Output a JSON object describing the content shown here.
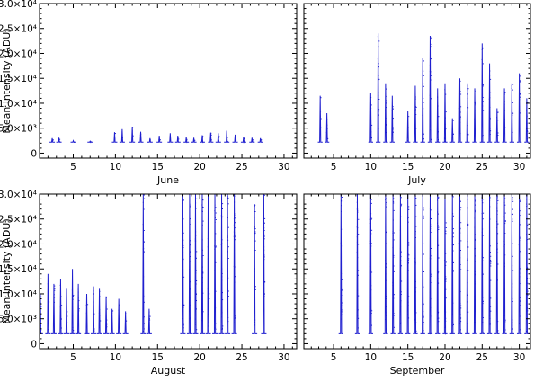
{
  "colors": {
    "series": "#1f1fcf",
    "axis": "#000000"
  },
  "chart_data": [
    {
      "type": "line",
      "xlabel": "June",
      "ylabel": "Mean intensity (ADU)",
      "xlim": [
        1,
        31.5
      ],
      "ylim": [
        -1000,
        30000
      ],
      "xticks": [
        "5",
        "10",
        "15",
        "20",
        "25",
        "30"
      ],
      "yticks": [
        "0",
        "5.0×10³",
        "1.0×10⁴",
        "1.5×10⁴",
        "2.0×10⁴",
        "2.5×10⁴",
        "3.0×10⁴"
      ],
      "baseline": 2200,
      "events": [
        {
          "d": 2.5,
          "peak": 3000
        },
        {
          "d": 3.3,
          "peak": 3100
        },
        {
          "d": 5.0,
          "peak": 2500
        },
        {
          "d": 7.0,
          "peak": 2400
        },
        {
          "d": 9.9,
          "peak": 4200
        },
        {
          "d": 10.8,
          "peak": 4800
        },
        {
          "d": 12.0,
          "peak": 5300
        },
        {
          "d": 13.0,
          "peak": 4300
        },
        {
          "d": 14.1,
          "peak": 3000
        },
        {
          "d": 15.2,
          "peak": 3500
        },
        {
          "d": 16.5,
          "peak": 4000
        },
        {
          "d": 17.4,
          "peak": 3500
        },
        {
          "d": 18.4,
          "peak": 3200
        },
        {
          "d": 19.3,
          "peak": 3100
        },
        {
          "d": 20.3,
          "peak": 3600
        },
        {
          "d": 21.3,
          "peak": 4100
        },
        {
          "d": 22.2,
          "peak": 4000
        },
        {
          "d": 23.2,
          "peak": 4500
        },
        {
          "d": 24.2,
          "peak": 3700
        },
        {
          "d": 25.2,
          "peak": 3300
        },
        {
          "d": 26.2,
          "peak": 3100
        },
        {
          "d": 27.2,
          "peak": 3000
        }
      ]
    },
    {
      "type": "line",
      "xlabel": "July",
      "ylabel": "",
      "xlim": [
        1,
        31.5
      ],
      "ylim": [
        -1000,
        30000
      ],
      "xticks": [
        "5",
        "10",
        "15",
        "20",
        "25",
        "30"
      ],
      "yticks": [],
      "baseline": 2200,
      "events": [
        {
          "d": 3.2,
          "peak": 11500
        },
        {
          "d": 4.1,
          "peak": 8000
        },
        {
          "d": 10.0,
          "peak": 12000
        },
        {
          "d": 11.0,
          "peak": 24000
        },
        {
          "d": 12.0,
          "peak": 14000
        },
        {
          "d": 12.9,
          "peak": 11500
        },
        {
          "d": 15.0,
          "peak": 8500
        },
        {
          "d": 16.0,
          "peak": 13500
        },
        {
          "d": 17.0,
          "peak": 19000
        },
        {
          "d": 18.0,
          "peak": 23500
        },
        {
          "d": 19.0,
          "peak": 13000
        },
        {
          "d": 20.0,
          "peak": 14000
        },
        {
          "d": 21.0,
          "peak": 7000
        },
        {
          "d": 22.0,
          "peak": 15000
        },
        {
          "d": 23.0,
          "peak": 14000
        },
        {
          "d": 24.0,
          "peak": 13000
        },
        {
          "d": 25.0,
          "peak": 22000
        },
        {
          "d": 26.0,
          "peak": 18000
        },
        {
          "d": 27.0,
          "peak": 9000
        },
        {
          "d": 28.0,
          "peak": 13000
        },
        {
          "d": 29.0,
          "peak": 14000
        },
        {
          "d": 30.0,
          "peak": 16000
        },
        {
          "d": 31.0,
          "peak": 11000
        }
      ]
    },
    {
      "type": "line",
      "xlabel": "August",
      "ylabel": "Mean intensity (ADU)",
      "xlim": [
        1,
        31.5
      ],
      "ylim": [
        -1000,
        30000
      ],
      "xticks": [
        "5",
        "10",
        "15",
        "20",
        "25",
        "30"
      ],
      "yticks": [
        "0",
        "5.0×10³",
        "1.0×10⁴",
        "1.5×10⁴",
        "2.0×10⁴",
        "2.5×10⁴",
        "3.0×10⁴"
      ],
      "baseline": 2000,
      "events": [
        {
          "d": 1.1,
          "peak": 10000
        },
        {
          "d": 2.0,
          "peak": 14000
        },
        {
          "d": 2.7,
          "peak": 12000
        },
        {
          "d": 3.5,
          "peak": 13000
        },
        {
          "d": 4.2,
          "peak": 11000
        },
        {
          "d": 4.9,
          "peak": 15000
        },
        {
          "d": 5.6,
          "peak": 12000
        },
        {
          "d": 6.6,
          "peak": 10000
        },
        {
          "d": 7.4,
          "peak": 11500
        },
        {
          "d": 8.1,
          "peak": 11000
        },
        {
          "d": 8.9,
          "peak": 9500
        },
        {
          "d": 9.6,
          "peak": 7000
        },
        {
          "d": 10.4,
          "peak": 9000
        },
        {
          "d": 11.2,
          "peak": 6500
        },
        {
          "d": 13.3,
          "peak": 30000
        },
        {
          "d": 14.0,
          "peak": 7000
        },
        {
          "d": 18.0,
          "peak": 30000
        },
        {
          "d": 18.8,
          "peak": 30000
        },
        {
          "d": 19.5,
          "peak": 30000
        },
        {
          "d": 20.3,
          "peak": 30000
        },
        {
          "d": 21.0,
          "peak": 30000
        },
        {
          "d": 21.8,
          "peak": 30000
        },
        {
          "d": 22.6,
          "peak": 30000
        },
        {
          "d": 23.3,
          "peak": 30000
        },
        {
          "d": 24.1,
          "peak": 30000
        },
        {
          "d": 26.5,
          "peak": 28000
        },
        {
          "d": 27.6,
          "peak": 30000
        }
      ]
    },
    {
      "type": "line",
      "xlabel": "September",
      "ylabel": "",
      "xlim": [
        1,
        31.5
      ],
      "ylim": [
        -1000,
        30000
      ],
      "xticks": [
        "5",
        "10",
        "15",
        "20",
        "25",
        "30"
      ],
      "yticks": [],
      "baseline": 2000,
      "events": [
        {
          "d": 6.0,
          "peak": 30000
        },
        {
          "d": 8.2,
          "peak": 30000
        },
        {
          "d": 10.0,
          "peak": 30000
        },
        {
          "d": 12.0,
          "peak": 30000
        },
        {
          "d": 13.0,
          "peak": 30000
        },
        {
          "d": 14.0,
          "peak": 30000
        },
        {
          "d": 15.0,
          "peak": 30000
        },
        {
          "d": 16.0,
          "peak": 30000
        },
        {
          "d": 17.0,
          "peak": 30000
        },
        {
          "d": 18.0,
          "peak": 30000
        },
        {
          "d": 19.0,
          "peak": 30000
        },
        {
          "d": 20.0,
          "peak": 30000
        },
        {
          "d": 21.0,
          "peak": 30000
        },
        {
          "d": 22.0,
          "peak": 30000
        },
        {
          "d": 23.0,
          "peak": 30000
        },
        {
          "d": 24.0,
          "peak": 30000
        },
        {
          "d": 25.0,
          "peak": 30000
        },
        {
          "d": 26.0,
          "peak": 30000
        },
        {
          "d": 27.0,
          "peak": 30000
        },
        {
          "d": 28.0,
          "peak": 30000
        },
        {
          "d": 29.0,
          "peak": 30000
        },
        {
          "d": 30.0,
          "peak": 30000
        },
        {
          "d": 31.0,
          "peak": 30000
        }
      ]
    }
  ]
}
